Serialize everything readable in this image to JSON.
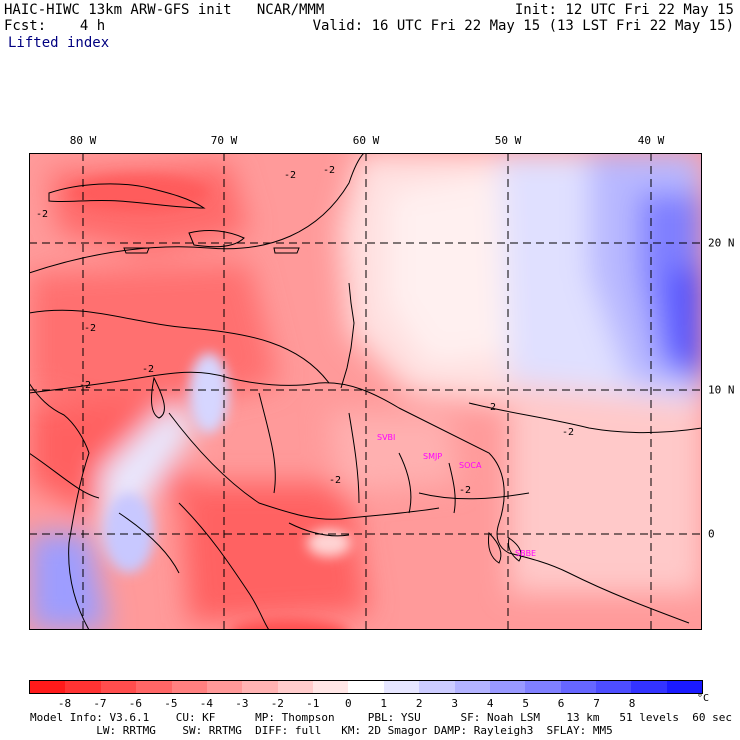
{
  "header": {
    "title": "HAIC-HIWC 13km ARW-GFS init   NCAR/MMM",
    "init": "Init: 12 UTC Fri 22 May 15",
    "fcst": "Fcst:    4 h",
    "valid": "Valid: 16 UTC Fri 22 May 15 (13 LST Fri 22 May 15)",
    "field": "Lifted index"
  },
  "map": {
    "lon_labels": [
      "80 W",
      "70 W",
      "60 W",
      "50 W",
      "40 W"
    ],
    "lat_labels": [
      "20 N",
      "10 N",
      "0"
    ],
    "contour_labels": [
      "-2",
      "-2",
      "-2",
      "-2",
      "-2",
      "-2",
      "-2",
      "-2",
      "-2",
      "-2"
    ],
    "stations": [
      "SVBI",
      "SMJP",
      "SOCA",
      "SBBE"
    ],
    "station_color": "#ff00ff"
  },
  "colorbar": {
    "colors": [
      "#ff1a1a",
      "#ff3333",
      "#ff4d4d",
      "#ff6666",
      "#ff8080",
      "#ff9999",
      "#ffb3b3",
      "#ffcccc",
      "#ffe6e6",
      "#ffffff",
      "#e6e6ff",
      "#ccccff",
      "#b3b3ff",
      "#9999ff",
      "#8080ff",
      "#6666ff",
      "#4d4dff",
      "#3333ff",
      "#1a1aff"
    ],
    "ticks": [
      "-8",
      "-7",
      "-6",
      "-5",
      "-4",
      "-3",
      "-2",
      "-1",
      "0",
      "1",
      "2",
      "3",
      "4",
      "5",
      "6",
      "7",
      "8"
    ],
    "unit": "°C"
  },
  "footer": {
    "line1": "Model Info: V3.6.1    CU: KF      MP: Thompson     PBL: YSU      SF: Noah LSM    13 km   51 levels  60 sec",
    "line2": "          LW: RRTMG    SW: RRTMG  DIFF: full   KM: 2D Smagor DAMP: Rayleigh3  SFLAY: MM5"
  }
}
